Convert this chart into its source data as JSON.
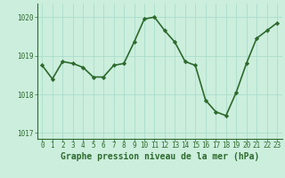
{
  "x": [
    0,
    1,
    2,
    3,
    4,
    5,
    6,
    7,
    8,
    9,
    10,
    11,
    12,
    13,
    14,
    15,
    16,
    17,
    18,
    19,
    20,
    21,
    22,
    23
  ],
  "y": [
    1018.75,
    1018.4,
    1018.85,
    1018.8,
    1018.7,
    1018.45,
    1018.45,
    1018.75,
    1018.8,
    1019.35,
    1019.95,
    1020.0,
    1019.65,
    1019.35,
    1018.85,
    1018.75,
    1017.85,
    1017.55,
    1017.45,
    1018.05,
    1018.8,
    1019.45,
    1019.65,
    1019.85
  ],
  "line_color": "#2d6a2d",
  "marker": "D",
  "marker_size": 2.2,
  "bg_color": "#cceedd",
  "grid_color": "#aaddcc",
  "xlabel": "Graphe pression niveau de la mer (hPa)",
  "xlabel_color": "#2d6a2d",
  "tick_color": "#2d6a2d",
  "axis_color": "#2d6a2d",
  "ylim": [
    1016.85,
    1020.35
  ],
  "yticks": [
    1017,
    1018,
    1019,
    1020
  ],
  "xlim": [
    -0.5,
    23.5
  ],
  "xticks": [
    0,
    1,
    2,
    3,
    4,
    5,
    6,
    7,
    8,
    9,
    10,
    11,
    12,
    13,
    14,
    15,
    16,
    17,
    18,
    19,
    20,
    21,
    22,
    23
  ],
  "linewidth": 1.2,
  "tick_fontsize": 5.5,
  "xlabel_fontsize": 7.0
}
